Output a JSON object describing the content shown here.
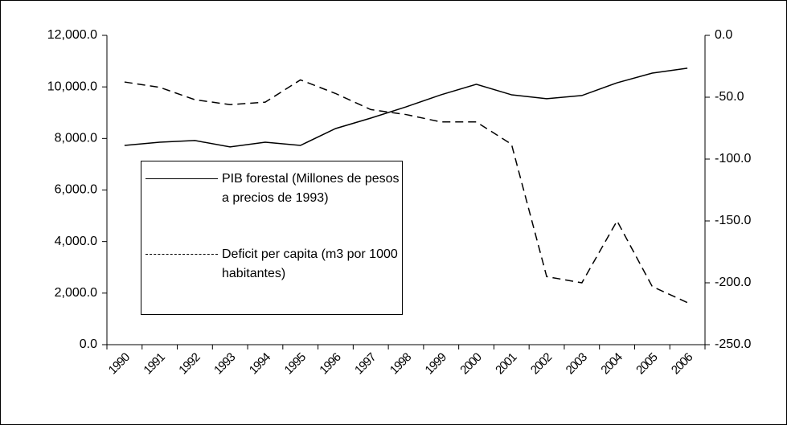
{
  "chart_data": {
    "type": "line",
    "categories": [
      "1990",
      "1991",
      "1992",
      "1993",
      "1994",
      "1995",
      "1996",
      "1997",
      "1998",
      "1999",
      "2000",
      "2001",
      "2002",
      "2003",
      "2004",
      "2005",
      "2006"
    ],
    "series": [
      {
        "name": "PIB forestal (Millones de pesos a precios de 1993)",
        "color": "#000000",
        "dash": "solid",
        "values": [
          7730,
          7855,
          7920,
          7670,
          7855,
          7730,
          8385,
          8790,
          9225,
          9695,
          10100,
          9695,
          9540,
          9665,
          10160,
          10535,
          10725
        ]
      },
      {
        "name": "Deficit per capita (m3 por 1000 habitantes)",
        "color": "#000000",
        "dash": "dashed",
        "axis": "y2",
        "values": [
          -37.7,
          -42,
          -52,
          -56,
          -54,
          -36,
          -47,
          -60,
          -64,
          -70,
          -70,
          -88,
          -195,
          -200,
          -150,
          -203,
          -216
        ]
      }
    ],
    "ylim": [
      0,
      12000
    ],
    "yticks": [
      {
        "value": 0,
        "label": "0.0"
      },
      {
        "value": 2000,
        "label": "2,000.0"
      },
      {
        "value": 4000,
        "label": "4,000.0"
      },
      {
        "value": 6000,
        "label": "6,000.0"
      },
      {
        "value": 8000,
        "label": "8,000.0"
      },
      {
        "value": 10000,
        "label": "10,000.0"
      },
      {
        "value": 12000,
        "label": "12,000.0"
      }
    ],
    "y2lim": [
      -250,
      0
    ],
    "y2ticks": [
      {
        "value": -250,
        "label": "-250.0"
      },
      {
        "value": -200,
        "label": "-200.0"
      },
      {
        "value": -150,
        "label": "-150.0"
      },
      {
        "value": -100,
        "label": "-100.0"
      },
      {
        "value": -50,
        "label": "-50.0"
      },
      {
        "value": 0,
        "label": "0.0"
      }
    ],
    "grid": false
  }
}
